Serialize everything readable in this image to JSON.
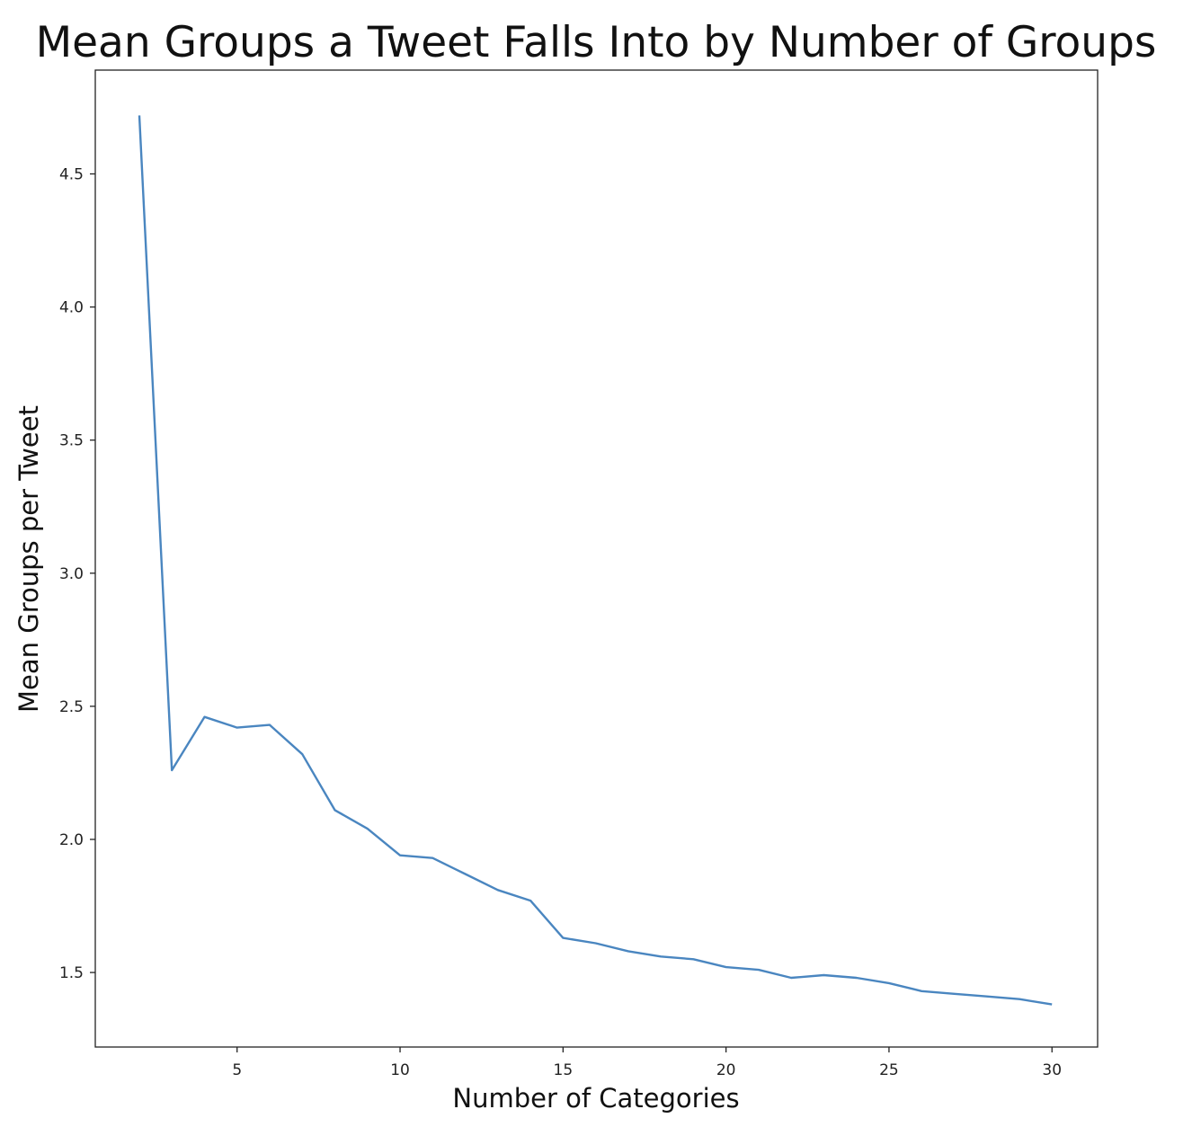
{
  "chart_data": {
    "type": "line",
    "title": "Mean Groups a Tweet Falls Into by Number of Groups",
    "xlabel": "Number of Categories",
    "ylabel": "Mean Groups per Tweet",
    "xlim": [
      0.65,
      31.4
    ],
    "ylim": [
      1.22,
      4.89
    ],
    "x_ticks": [
      5,
      10,
      15,
      20,
      25,
      30
    ],
    "x_tick_labels": [
      "5",
      "10",
      "15",
      "20",
      "25",
      "30"
    ],
    "y_ticks": [
      1.5,
      2.0,
      2.5,
      3.0,
      3.5,
      4.0,
      4.5
    ],
    "y_tick_labels": [
      "1.5",
      "2.0",
      "2.5",
      "3.0",
      "3.5",
      "4.0",
      "4.5"
    ],
    "grid": false,
    "legend": false,
    "line_color": "#4a86c0",
    "series": [
      {
        "x": [
          2,
          3,
          4,
          5,
          6,
          7,
          8,
          9,
          10,
          11,
          12,
          13,
          14,
          15,
          16,
          17,
          18,
          19,
          20,
          21,
          22,
          23,
          24,
          25,
          26,
          27,
          28,
          29,
          30
        ],
        "values": [
          4.72,
          2.26,
          2.46,
          2.42,
          2.43,
          2.32,
          2.11,
          2.04,
          1.94,
          1.93,
          1.87,
          1.81,
          1.77,
          1.63,
          1.61,
          1.58,
          1.56,
          1.55,
          1.52,
          1.51,
          1.48,
          1.49,
          1.48,
          1.46,
          1.43,
          1.42,
          1.41,
          1.4,
          1.38
        ]
      }
    ]
  }
}
